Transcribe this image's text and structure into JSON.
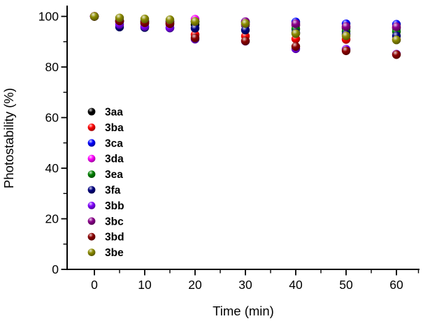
{
  "chart_data": {
    "type": "scatter",
    "title": "",
    "xlabel": "Time (min)",
    "ylabel": "Photostability (%)",
    "marker": "sphere-3d",
    "grid": false,
    "legend_position": "inside-left-middle",
    "x": [
      0,
      5,
      10,
      15,
      20,
      30,
      40,
      50,
      60
    ],
    "xticks": [
      0,
      10,
      20,
      30,
      40,
      50,
      60
    ],
    "xminorticks": [
      5,
      15,
      25,
      35,
      45,
      55
    ],
    "yticks": [
      0,
      20,
      40,
      60,
      80,
      100
    ],
    "yminorticks": [
      10,
      30,
      50,
      70,
      90
    ],
    "xlim": [
      -5.5,
      64.5
    ],
    "ylim": [
      -0.5,
      104
    ],
    "axis_color": "#000000",
    "series": [
      {
        "name": "3aa",
        "color": "#000000",
        "values": [
          100,
          97.8,
          97.2,
          96.9,
          96.8,
          96.6,
          96.4,
          95.4,
          95.3
        ]
      },
      {
        "name": "3ba",
        "color": "#ff0000",
        "values": [
          100,
          98.0,
          97.4,
          97.3,
          92.8,
          92.2,
          91.1,
          90.9,
          90.8
        ]
      },
      {
        "name": "3ca",
        "color": "#0000ff",
        "values": [
          100,
          98.2,
          98.1,
          98.0,
          98.0,
          97.9,
          97.8,
          97.1,
          96.9
        ]
      },
      {
        "name": "3da",
        "color": "#ff00ff",
        "values": [
          100,
          98.3,
          98.0,
          97.6,
          98.9,
          96.9,
          96.6,
          95.9,
          95.7
        ]
      },
      {
        "name": "3ea",
        "color": "#008000",
        "values": [
          100,
          98.1,
          98.0,
          97.9,
          97.8,
          97.7,
          95.0,
          94.1,
          94.0
        ]
      },
      {
        "name": "3fa",
        "color": "#000080",
        "values": [
          100,
          95.8,
          95.6,
          95.4,
          95.3,
          94.6,
          93.5,
          92.9,
          92.3
        ]
      },
      {
        "name": "3bb",
        "color": "#8000ff",
        "values": [
          100,
          96.8,
          96.0,
          95.5,
          91.0,
          90.2,
          87.2,
          87.0,
          85.1
        ]
      },
      {
        "name": "3bc",
        "color": "#8b008b",
        "values": [
          100,
          98.4,
          98.2,
          98.1,
          98.0,
          97.9,
          97.1,
          96.0,
          95.9
        ]
      },
      {
        "name": "3bd",
        "color": "#8b0000",
        "values": [
          100,
          98.2,
          97.5,
          97.1,
          91.5,
          90.3,
          88.1,
          86.4,
          84.9
        ]
      },
      {
        "name": "3be",
        "color": "#8b8b00",
        "values": [
          100,
          99.4,
          99.0,
          98.7,
          98.0,
          97.2,
          93.2,
          92.3,
          90.7
        ]
      }
    ]
  }
}
